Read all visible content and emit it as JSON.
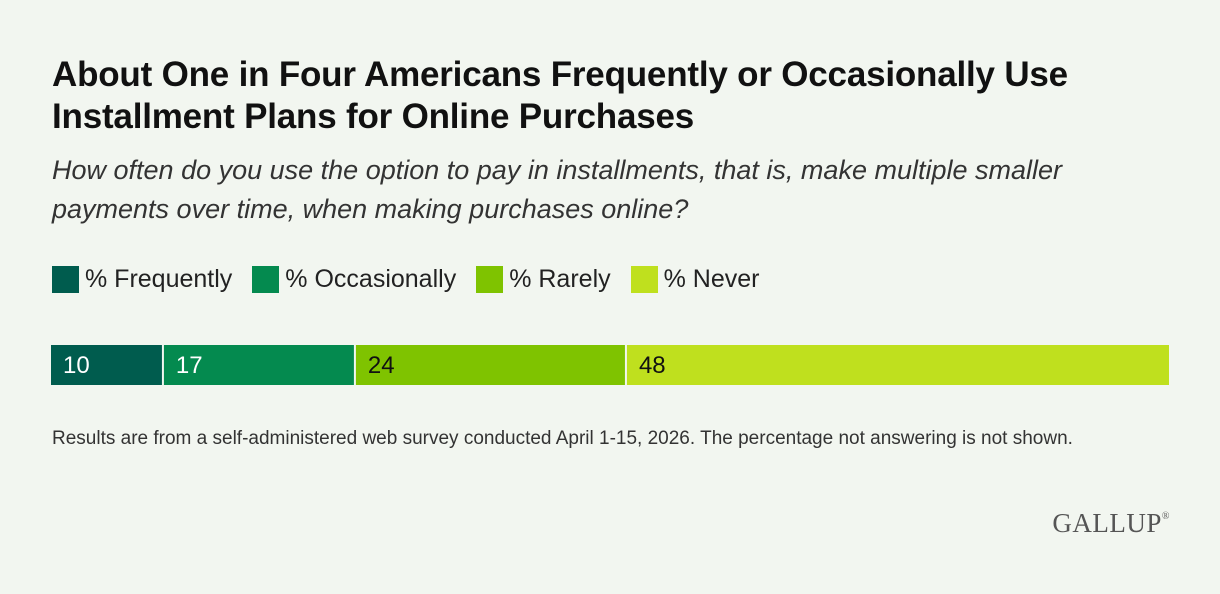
{
  "title": "About One in Four Americans Frequently or Occasionally Use Installment Plans for Online Purchases",
  "subtitle": "How often do you use the option to pay in installments, that is, make multiple smaller payments over time, when making purchases online?",
  "note": "Results are from a self-administered web survey conducted April 1-15, 2026. The percentage not answering is not shown.",
  "logo": "GALLUP",
  "logo_mark": "®",
  "chart_data": {
    "type": "bar",
    "orientation": "horizontal",
    "stacked": true,
    "categories": [
      ""
    ],
    "series": [
      {
        "name": "% Frequently",
        "values": [
          10
        ],
        "color": "#005c4e",
        "label_color": "#ffffff"
      },
      {
        "name": "% Occasionally",
        "values": [
          17
        ],
        "color": "#048a4f",
        "label_color": "#ffffff"
      },
      {
        "name": "% Rarely",
        "values": [
          24
        ],
        "color": "#7fc300",
        "label_color": "#111111"
      },
      {
        "name": "% Never",
        "values": [
          48
        ],
        "color": "#bfe01e",
        "label_color": "#111111"
      }
    ],
    "data_labels": [
      "10",
      "17",
      "24",
      "48"
    ],
    "legend_position": "top-left",
    "grid": false
  }
}
